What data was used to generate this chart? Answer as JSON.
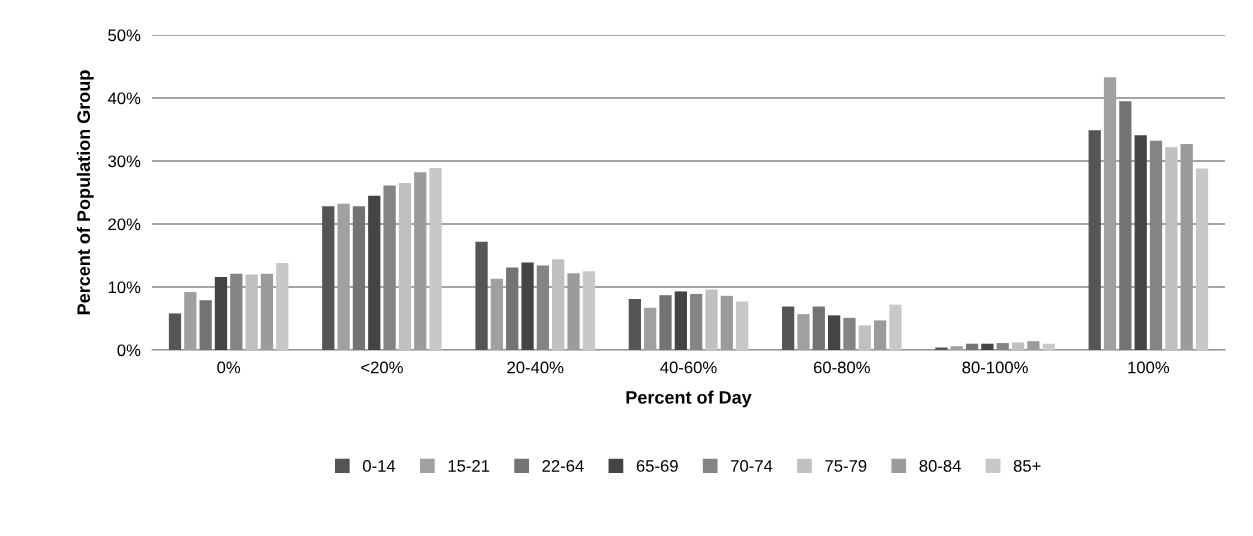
{
  "chart_data": {
    "type": "bar",
    "xlabel": "Percent of Day",
    "ylabel": "Percent of Population Group",
    "categories": [
      "0%",
      "<20%",
      "20-40%",
      "40-60%",
      "60-80%",
      "80-100%",
      "100%"
    ],
    "series": [
      {
        "name": "0-14",
        "color": "#555555",
        "values": [
          5.8,
          22.8,
          17.2,
          8.1,
          6.9,
          0.4,
          34.9
        ]
      },
      {
        "name": "15-21",
        "color": "#a0a0a0",
        "values": [
          9.2,
          23.2,
          11.3,
          6.7,
          5.7,
          0.6,
          43.3
        ]
      },
      {
        "name": "22-64",
        "color": "#737373",
        "values": [
          7.9,
          22.8,
          13.1,
          8.7,
          6.9,
          1.0,
          39.5
        ]
      },
      {
        "name": "65-69",
        "color": "#444444",
        "values": [
          11.6,
          24.5,
          13.9,
          9.3,
          5.5,
          1.0,
          34.1
        ]
      },
      {
        "name": "70-74",
        "color": "#848484",
        "values": [
          12.1,
          26.1,
          13.4,
          8.9,
          5.1,
          1.1,
          33.2
        ]
      },
      {
        "name": "75-79",
        "color": "#c0c0c0",
        "values": [
          12.0,
          26.5,
          14.4,
          9.6,
          3.9,
          1.2,
          32.2
        ]
      },
      {
        "name": "80-84",
        "color": "#9b9b9b",
        "values": [
          12.1,
          28.2,
          12.2,
          8.6,
          4.7,
          1.4,
          32.7
        ]
      },
      {
        "name": "85+",
        "color": "#c8c8c8",
        "values": [
          13.8,
          28.9,
          12.5,
          7.7,
          7.2,
          1.0,
          28.8
        ]
      }
    ],
    "ylim": [
      0,
      50
    ],
    "yticks": [
      {
        "value": 0,
        "label": "0%"
      },
      {
        "value": 10,
        "label": "10%"
      },
      {
        "value": 20,
        "label": "20%"
      },
      {
        "value": 30,
        "label": "30%"
      },
      {
        "value": 40,
        "label": "40%"
      },
      {
        "value": 50,
        "label": "50%"
      }
    ],
    "grid": "y",
    "legend": "bottom"
  }
}
